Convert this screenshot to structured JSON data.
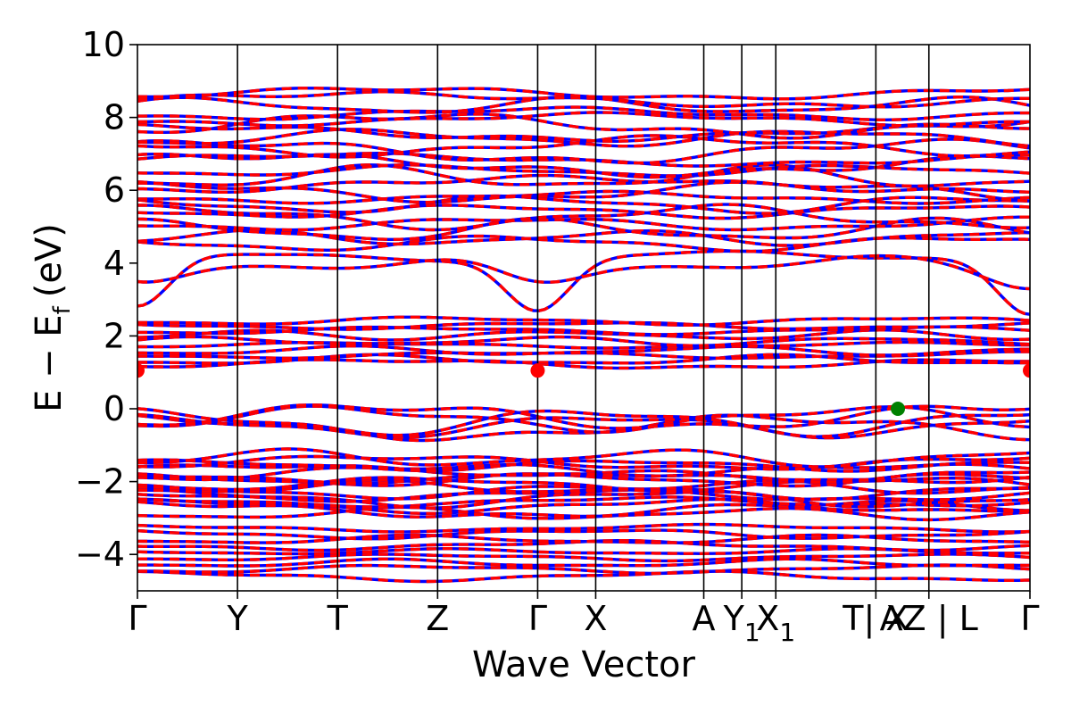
{
  "chart_data": {
    "type": "line",
    "xlabel": "Wave Vector",
    "ylabel": "E − E",
    "ylabel_sub": "f",
    "ylabel_unit": "(eV)",
    "ylim": [
      -5,
      10
    ],
    "yticks": [
      -4,
      -2,
      0,
      2,
      4,
      6,
      8,
      10
    ],
    "ytick_labels": [
      "−4",
      "−2",
      "0",
      "2",
      "4",
      "6",
      "8",
      "10"
    ],
    "kpath_positions": [
      0,
      1.0,
      2.0,
      3.0,
      4.0,
      4.58,
      5.66,
      6.04,
      6.38,
      7.38,
      7.91,
      8.92
    ],
    "kpath_labels": [
      "Γ",
      "Y",
      "T",
      "Z",
      "Γ",
      "X",
      "A",
      "Y",
      "X",
      "T| X",
      "AZ | L",
      "Γ"
    ],
    "kpath_subscripts": [
      "",
      "",
      "",
      "",
      "",
      "",
      "",
      "1",
      "1",
      "",
      "",
      ""
    ],
    "spin_colors": {
      "spin_up": "#0000ff",
      "spin_down": "#ff0000"
    },
    "markers": [
      {
        "name": "CBM",
        "x": 0,
        "y": 1.05,
        "color": "#ff0000"
      },
      {
        "name": "CBM",
        "x": 4.0,
        "y": 1.05,
        "color": "#ff0000"
      },
      {
        "name": "CBM",
        "x": 8.92,
        "y": 1.05,
        "color": "#ff0000"
      },
      {
        "name": "VBM",
        "x": 7.6,
        "y": 0.0,
        "color": "#008000"
      }
    ],
    "band_groups": [
      {
        "group": "valence-deep",
        "range": [
          -4.6,
          -3.3
        ]
      },
      {
        "group": "valence-mid",
        "range": [
          -2.9,
          -1.3
        ]
      },
      {
        "group": "valence-top",
        "range": [
          -0.9,
          0.0
        ]
      },
      {
        "group": "conduction-low",
        "range": [
          1.05,
          2.5
        ]
      },
      {
        "group": "conduction-high",
        "range": [
          2.7,
          9.0
        ]
      }
    ]
  }
}
